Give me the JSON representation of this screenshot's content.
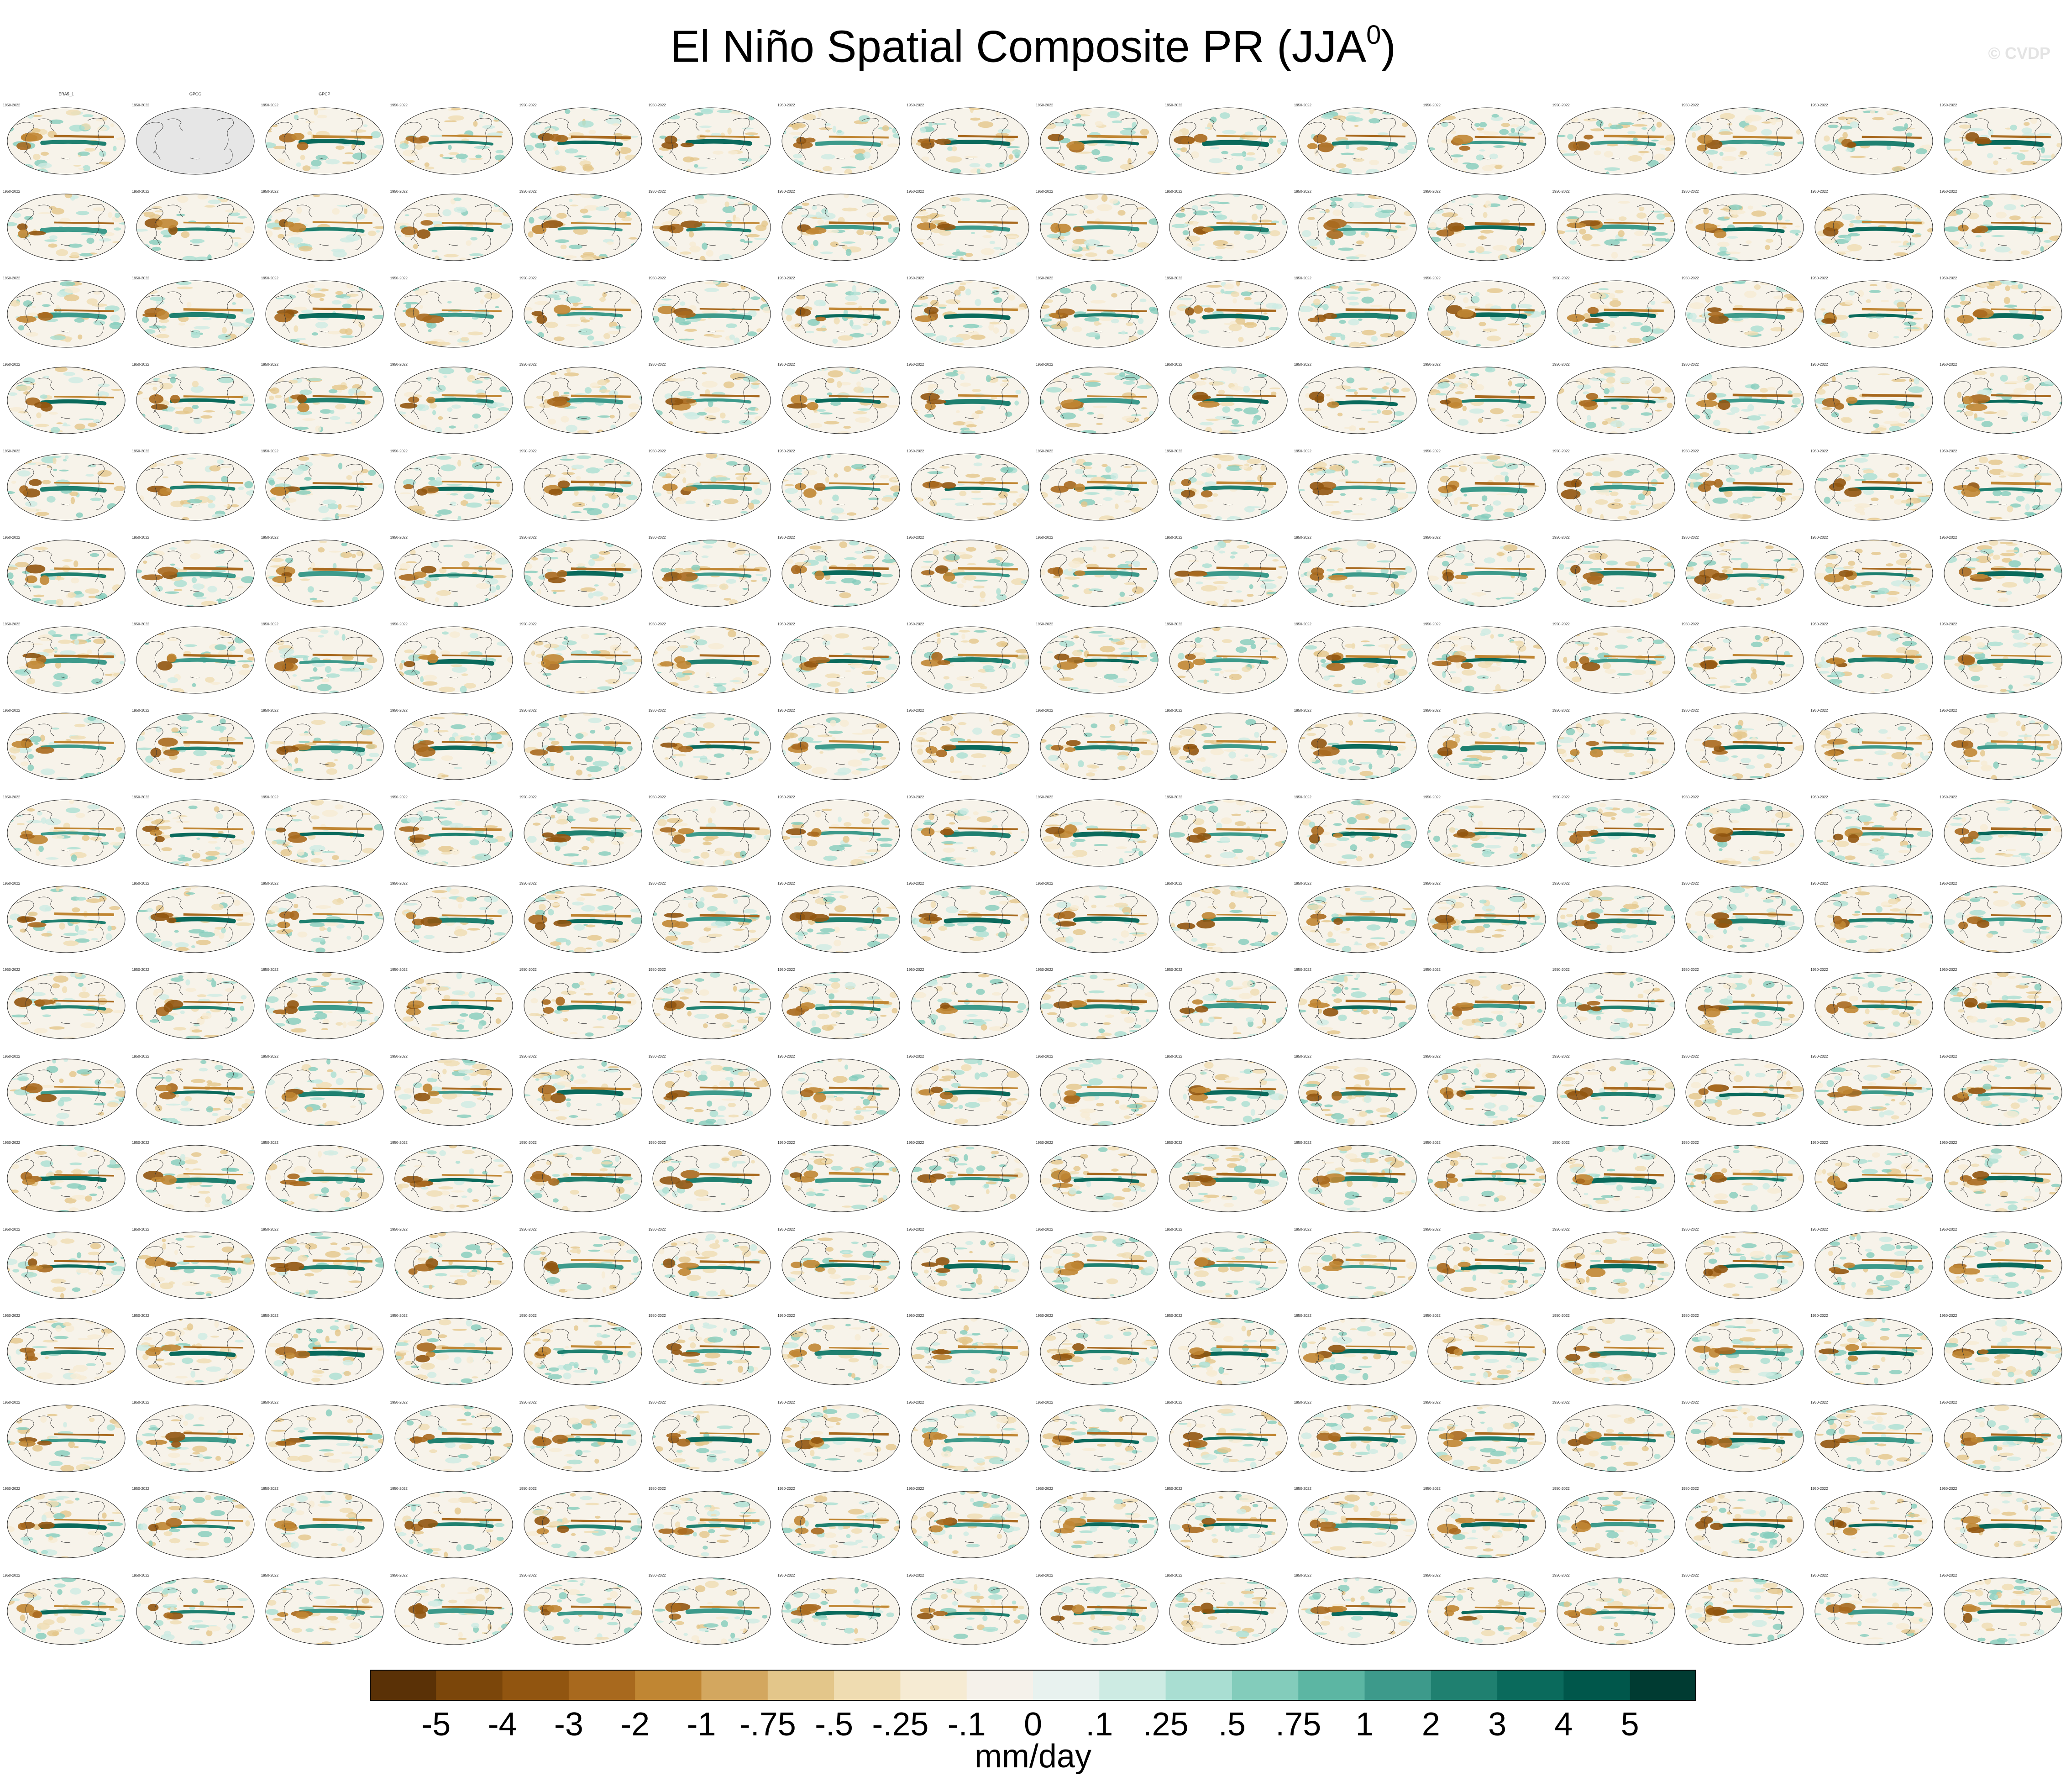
{
  "figure": {
    "title_main": "El Niño Spatial Composite PR (JJA",
    "title_sup": "0",
    "title_close": ")",
    "credit": "© CVDP",
    "units": "mm/day"
  },
  "colors": {
    "colorbar": [
      "#5a3106",
      "#7b460a",
      "#915510",
      "#a8691e",
      "#c08633",
      "#d3a75f",
      "#e3c68a",
      "#efdcb1",
      "#f6ebd3",
      "#f5f1ea",
      "#e8f2ef",
      "#cdebe3",
      "#a9ded2",
      "#83ccbb",
      "#5cb6a3",
      "#3d9a8b",
      "#1f8070",
      "#0a6a5c",
      "#00574b",
      "#003b32"
    ],
    "model_title_colors": [
      "#000000",
      "#2a70c8",
      "#26a69a",
      "#f08a2a",
      "#d94b2b",
      "#7e65c9",
      "#c9a2d9"
    ],
    "land": "#ffffff",
    "missing": "#e6e6e6"
  },
  "chart_data": {
    "type": "heatmap",
    "layout": "grid of spatial composite maps",
    "rows": 18,
    "cols": 16,
    "visible_panel_titles": [
      "ERA5_1",
      "GPCC",
      "GPCP"
    ],
    "panel_years": "1950-2022",
    "colorbar_ticks": [
      "-5",
      "-4",
      "-3",
      "-2",
      "-1",
      "-.75",
      "-.5",
      "-.25",
      "-.1",
      "0",
      ".1",
      ".25",
      ".5",
      ".75",
      "1",
      "2",
      "3",
      "4",
      "5"
    ],
    "colorbar_label": "mm/day"
  }
}
